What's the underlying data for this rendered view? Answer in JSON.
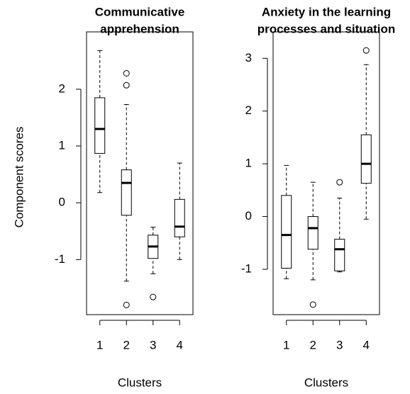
{
  "chart_data": [
    {
      "type": "box",
      "title": [
        "Communicative",
        "apprehension"
      ],
      "xlabel": "Clusters",
      "ylabel": "Component scores",
      "categories": [
        "1",
        "2",
        "3",
        "4"
      ],
      "boxes": [
        {
          "whislo": 0.18,
          "q1": 0.87,
          "med": 1.3,
          "q3": 1.85,
          "whishi": 2.68,
          "fliers": []
        },
        {
          "whislo": -1.38,
          "q1": -0.22,
          "med": 0.35,
          "q3": 0.58,
          "whishi": 1.73,
          "fliers": [
            2.28,
            2.07,
            -1.8
          ]
        },
        {
          "whislo": -1.25,
          "q1": -0.98,
          "med": -0.77,
          "q3": -0.57,
          "whishi": -0.43,
          "fliers": [
            -1.66
          ]
        },
        {
          "whislo": -1.0,
          "q1": -0.6,
          "med": -0.42,
          "q3": 0.06,
          "whishi": 0.7,
          "fliers": []
        }
      ],
      "color": "#000000",
      "ylim": [
        -1.97,
        2.86
      ],
      "yticks": [
        -1,
        0,
        1,
        2
      ]
    },
    {
      "type": "box",
      "title": [
        "Anxiety in the learning",
        "processes and situation"
      ],
      "xlabel": "Clusters",
      "categories": [
        "1",
        "2",
        "3",
        "4"
      ],
      "boxes": [
        {
          "whislo": -1.18,
          "q1": -0.98,
          "med": -0.35,
          "q3": 0.4,
          "whishi": 0.97,
          "fliers": []
        },
        {
          "whislo": -1.2,
          "q1": -0.62,
          "med": -0.22,
          "q3": 0.0,
          "whishi": 0.65,
          "fliers": [
            -1.67
          ]
        },
        {
          "whislo": -1.05,
          "q1": -1.03,
          "med": -0.62,
          "q3": -0.43,
          "whishi": 0.35,
          "fliers": [
            0.65
          ]
        },
        {
          "whislo": -0.05,
          "q1": 0.63,
          "med": 1.0,
          "q3": 1.55,
          "whishi": 2.88,
          "fliers": [
            3.15
          ]
        }
      ],
      "color": "#000000",
      "ylim": [
        -1.86,
        3.34
      ],
      "yticks": [
        -1,
        0,
        1,
        2,
        3
      ]
    }
  ]
}
